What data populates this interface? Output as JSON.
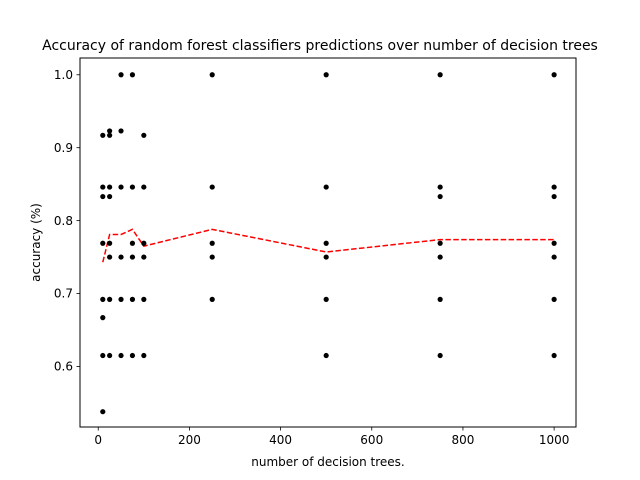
{
  "chart_data": {
    "type": "scatter",
    "title": "Accuracy of random forest classifiers predictions over number of decision trees",
    "xlabel": "number of decision trees.",
    "ylabel": "accuracy (%)",
    "xlim": [
      -40,
      1048
    ],
    "ylim": [
      0.517,
      1.023
    ],
    "xticks": [
      0,
      200,
      400,
      600,
      800,
      1000
    ],
    "xtick_labels": [
      "0",
      "200",
      "400",
      "600",
      "800",
      "1000"
    ],
    "yticks": [
      0.6,
      0.7,
      0.8,
      0.9,
      1.0
    ],
    "ytick_labels": [
      "0.6",
      "0.7",
      "0.8",
      "0.9",
      "1.0"
    ],
    "grid": false,
    "series": [
      {
        "kind": "points",
        "color": "#000000",
        "points": [
          [
            10,
            0.917
          ],
          [
            10,
            0.846
          ],
          [
            10,
            0.833
          ],
          [
            10,
            0.769
          ],
          [
            10,
            0.692
          ],
          [
            10,
            0.667
          ],
          [
            10,
            0.615
          ],
          [
            10,
            0.538
          ],
          [
            25,
            0.923
          ],
          [
            25,
            0.917
          ],
          [
            25,
            0.846
          ],
          [
            25,
            0.833
          ],
          [
            25,
            0.769
          ],
          [
            25,
            0.75
          ],
          [
            25,
            0.692
          ],
          [
            25,
            0.615
          ],
          [
            50,
            1.0
          ],
          [
            50,
            0.923
          ],
          [
            50,
            0.846
          ],
          [
            50,
            0.75
          ],
          [
            50,
            0.692
          ],
          [
            50,
            0.615
          ],
          [
            75,
            1.0
          ],
          [
            75,
            0.846
          ],
          [
            75,
            0.769
          ],
          [
            75,
            0.75
          ],
          [
            75,
            0.692
          ],
          [
            75,
            0.615
          ],
          [
            100,
            0.917
          ],
          [
            100,
            0.846
          ],
          [
            100,
            0.769
          ],
          [
            100,
            0.75
          ],
          [
            100,
            0.692
          ],
          [
            100,
            0.615
          ],
          [
            250,
            1.0
          ],
          [
            250,
            0.846
          ],
          [
            250,
            0.769
          ],
          [
            250,
            0.75
          ],
          [
            250,
            0.692
          ],
          [
            500,
            1.0
          ],
          [
            500,
            0.846
          ],
          [
            500,
            0.769
          ],
          [
            500,
            0.75
          ],
          [
            500,
            0.692
          ],
          [
            500,
            0.615
          ],
          [
            750,
            1.0
          ],
          [
            750,
            0.846
          ],
          [
            750,
            0.833
          ],
          [
            750,
            0.769
          ],
          [
            750,
            0.75
          ],
          [
            750,
            0.692
          ],
          [
            750,
            0.615
          ],
          [
            1000,
            1.0
          ],
          [
            1000,
            0.846
          ],
          [
            1000,
            0.833
          ],
          [
            1000,
            0.769
          ],
          [
            1000,
            0.75
          ],
          [
            1000,
            0.692
          ],
          [
            1000,
            0.615
          ]
        ]
      },
      {
        "kind": "line",
        "style": "dashed",
        "color": "#ff0000",
        "x": [
          10,
          25,
          50,
          75,
          100,
          250,
          500,
          750,
          1000
        ],
        "y": [
          0.743,
          0.781,
          0.781,
          0.788,
          0.765,
          0.788,
          0.757,
          0.774,
          0.774
        ]
      }
    ]
  }
}
